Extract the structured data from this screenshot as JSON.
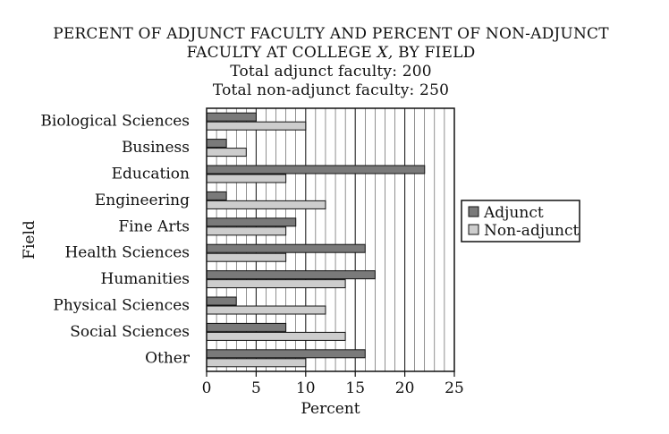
{
  "chart_data": {
    "type": "bar",
    "orientation": "horizontal",
    "title": "PERCENT OF ADJUNCT FACULTY AND PERCENT OF NON-ADJUNCT FACULTY AT COLLEGE X, BY FIELD",
    "title_line1": "PERCENT OF ADJUNCT FACULTY AND PERCENT OF NON-ADJUNCT",
    "title_line2_prefix": "FACULTY AT COLLEGE ",
    "title_line2_italic": "X,",
    "title_line2_suffix": " BY FIELD",
    "subtitle_adjunct_total": "Total adjunct faculty:  200",
    "subtitle_nonadjunct_total": "Total non-adjunct faculty:  250",
    "xlabel": "Percent",
    "ylabel": "Field",
    "xlim": [
      0,
      25
    ],
    "xticks": [
      0,
      5,
      10,
      15,
      20,
      25
    ],
    "minor_grid_step": 1,
    "major_grid_step": 5,
    "grid": true,
    "legend_position": "right",
    "categories": [
      "Biological Sciences",
      "Business",
      "Education",
      "Engineering",
      "Fine Arts",
      "Health Sciences",
      "Humanities",
      "Physical Sciences",
      "Social Sciences",
      "Other"
    ],
    "series": [
      {
        "name": "Adjunct",
        "color": "#7a7a7a",
        "values": [
          5,
          2,
          22,
          2,
          9,
          16,
          17,
          3,
          8,
          16
        ]
      },
      {
        "name": "Non-adjunct",
        "color": "#cdcdcd",
        "values": [
          10,
          4,
          8,
          12,
          8,
          8,
          14,
          12,
          14,
          10
        ]
      }
    ]
  }
}
